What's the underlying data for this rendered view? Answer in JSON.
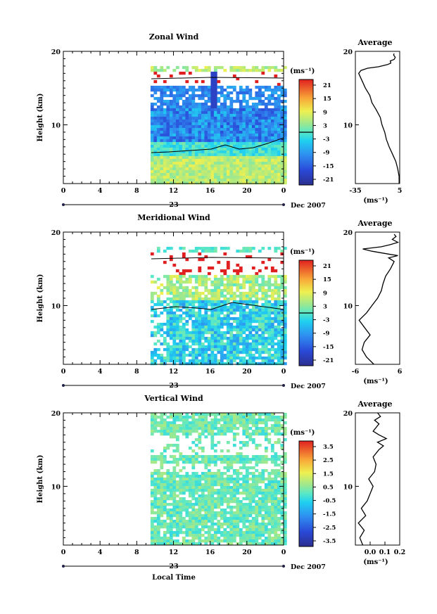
{
  "chart_data": [
    {
      "type": "heatmap",
      "title": "Zonal Wind",
      "ylabel": "Height (km)",
      "x_ticks": [
        "0",
        "4",
        "8",
        "12",
        "16",
        "20",
        "0"
      ],
      "ylim": [
        2,
        20
      ],
      "y_ticks": [
        "10",
        "20"
      ],
      "date_day": "23",
      "date_label": "Dec 2007",
      "colorbar": {
        "unit_label": "(ms⁻¹)",
        "tick_labels": [
          "21",
          "15",
          "9",
          "3",
          "-3",
          "-9",
          "-15",
          "-21"
        ],
        "range": [
          -24,
          24
        ]
      },
      "data_window": {
        "x_start": 9.5,
        "x_end": 24,
        "y_bottom": 2,
        "y_top": 18
      },
      "profile": {
        "title": "Average",
        "xlabel": "(ms⁻¹)",
        "x_ticks": [
          "-35",
          "5"
        ],
        "xlim": [
          -35,
          5
        ],
        "y_ticks": [
          "10",
          "20"
        ],
        "points": [
          [
            4.5,
            2
          ],
          [
            4.4,
            3
          ],
          [
            3.2,
            4
          ],
          [
            1.5,
            5
          ],
          [
            -1.5,
            6
          ],
          [
            -4.5,
            7
          ],
          [
            -7,
            8
          ],
          [
            -8.5,
            9
          ],
          [
            -11,
            10
          ],
          [
            -12.5,
            11
          ],
          [
            -16,
            12
          ],
          [
            -20,
            13
          ],
          [
            -22,
            14
          ],
          [
            -26,
            15
          ],
          [
            -29,
            16
          ],
          [
            -32,
            17
          ],
          [
            -30,
            17.4
          ],
          [
            -24,
            17.7
          ],
          [
            -14,
            17.9
          ],
          [
            -6,
            18.2
          ],
          [
            -3,
            18.4
          ],
          [
            -3.5,
            18.7
          ],
          [
            0,
            18.9
          ],
          [
            1,
            19.2
          ],
          [
            -0.5,
            19.5
          ],
          [
            0,
            19.7
          ]
        ]
      }
    },
    {
      "type": "heatmap",
      "title": "Meridional Wind",
      "ylabel": "Height (km)",
      "x_ticks": [
        "0",
        "4",
        "8",
        "12",
        "16",
        "20",
        "0"
      ],
      "ylim": [
        2,
        20
      ],
      "y_ticks": [
        "10",
        "20"
      ],
      "date_day": "23",
      "date_label": "Dec 2007",
      "colorbar": {
        "unit_label": "(ms⁻¹)",
        "tick_labels": [
          "21",
          "15",
          "9",
          "3",
          "-3",
          "-9",
          "-15",
          "-21"
        ],
        "range": [
          -24,
          24
        ]
      },
      "data_window": {
        "x_start": 9.5,
        "x_end": 24,
        "y_bottom": 2,
        "y_top": 18
      },
      "profile": {
        "title": "Average",
        "xlabel": "(ms⁻¹)",
        "x_ticks": [
          "-6",
          "6"
        ],
        "xlim": [
          -6,
          6
        ],
        "y_ticks": [
          "10",
          "20"
        ],
        "points": [
          [
            -1,
            2
          ],
          [
            -3,
            3
          ],
          [
            -4.2,
            4
          ],
          [
            -3.6,
            5
          ],
          [
            -2,
            6
          ],
          [
            -3.5,
            7
          ],
          [
            -5,
            8
          ],
          [
            -3,
            9
          ],
          [
            -1.5,
            10
          ],
          [
            0,
            11
          ],
          [
            1,
            12
          ],
          [
            1.5,
            13
          ],
          [
            2.2,
            14
          ],
          [
            3.5,
            15
          ],
          [
            4.5,
            16
          ],
          [
            3,
            16.5
          ],
          [
            5.5,
            16.8
          ],
          [
            3,
            17
          ],
          [
            -1.5,
            17.4
          ],
          [
            -4,
            17.7
          ],
          [
            1,
            18
          ],
          [
            3.5,
            18.3
          ],
          [
            5.5,
            18.6
          ],
          [
            4,
            19
          ],
          [
            5,
            19.4
          ],
          [
            4.5,
            19.7
          ]
        ]
      }
    },
    {
      "type": "heatmap",
      "title": "Vertical Wind",
      "ylabel": "Height (km)",
      "xlabel": "Local Time",
      "x_ticks": [
        "0",
        "4",
        "8",
        "12",
        "16",
        "20",
        "0"
      ],
      "ylim": [
        2,
        20
      ],
      "y_ticks": [
        "10",
        "20"
      ],
      "date_day": "23",
      "date_label": "Dec 2007",
      "colorbar": {
        "unit_label": "(ms⁻¹)",
        "tick_labels": [
          "3.5",
          "2.5",
          "1.5",
          "0.5",
          "-0.5",
          "-1.5",
          "-2.5",
          "-3.5"
        ],
        "range": [
          -4,
          4
        ]
      },
      "data_window": {
        "x_start": 9.5,
        "x_end": 24,
        "y_bottom": 2,
        "y_top": 20
      },
      "profile": {
        "title": "Average",
        "xlabel": "(ms⁻¹)",
        "x_ticks": [
          "0.0",
          "0.1",
          "0.2"
        ],
        "xlim": [
          -0.1,
          0.2
        ],
        "y_ticks": [
          "10",
          "20"
        ],
        "points": [
          [
            -0.05,
            2
          ],
          [
            -0.07,
            3
          ],
          [
            -0.04,
            4
          ],
          [
            -0.08,
            5
          ],
          [
            -0.03,
            6
          ],
          [
            -0.06,
            7
          ],
          [
            -0.02,
            8
          ],
          [
            0.0,
            9
          ],
          [
            0.02,
            10
          ],
          [
            -0.01,
            11
          ],
          [
            0.03,
            12
          ],
          [
            0.04,
            13
          ],
          [
            0.02,
            14
          ],
          [
            0.06,
            15
          ],
          [
            0.09,
            15.5
          ],
          [
            0.05,
            16
          ],
          [
            0.11,
            16.5
          ],
          [
            0.06,
            17
          ],
          [
            0.02,
            17.5
          ],
          [
            0.04,
            18
          ],
          [
            0.06,
            18.5
          ],
          [
            0.03,
            19
          ],
          [
            0.07,
            19.5
          ],
          [
            0.05,
            20
          ]
        ]
      }
    }
  ]
}
